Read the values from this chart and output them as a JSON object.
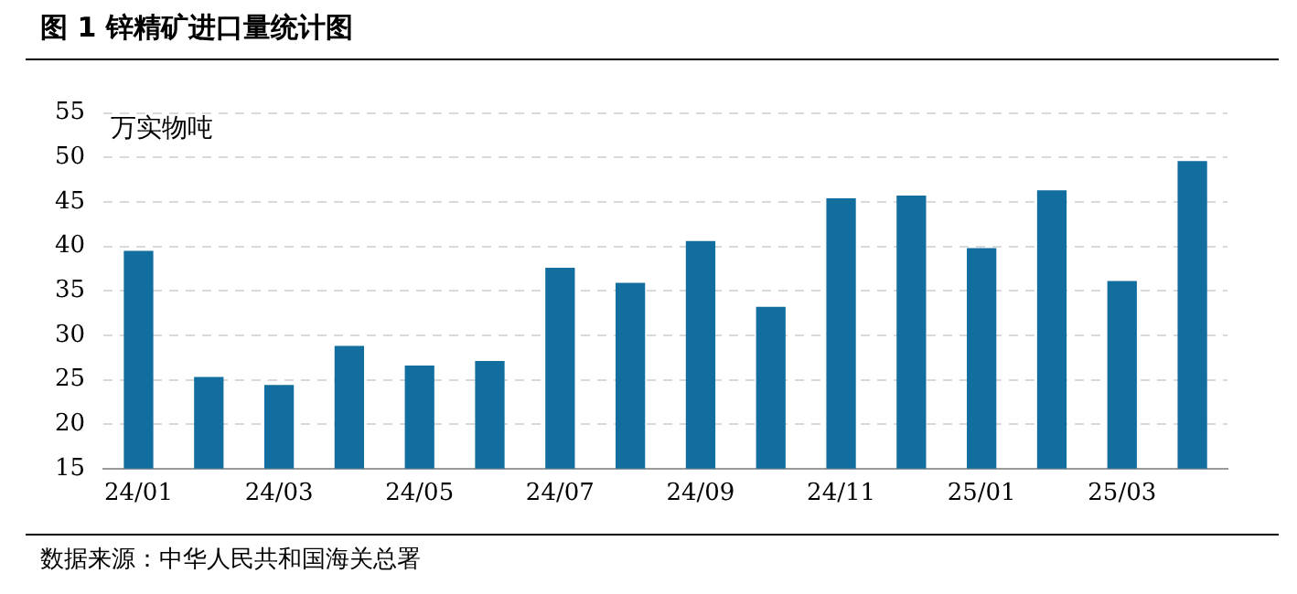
{
  "chart_data": {
    "type": "bar",
    "title": "图 1  锌精矿进口量统计图",
    "ylabel": "万实物吨",
    "annotations": [
      "数据来源：中华人民共和国海关总署"
    ],
    "categories": [
      "24/01",
      null,
      "24/03",
      null,
      "24/05",
      null,
      "24/07",
      null,
      "24/09",
      null,
      "24/11",
      null,
      "25/01",
      null,
      "25/03",
      null
    ],
    "values": [
      39.5,
      25.3,
      24.4,
      28.8,
      26.6,
      27.1,
      37.6,
      35.9,
      40.6,
      33.2,
      45.4,
      45.7,
      39.8,
      46.3,
      36.1,
      49.6
    ],
    "color": "#126e9e",
    "ylim": [
      15,
      55
    ],
    "yticks": [
      15,
      20,
      25,
      30,
      35,
      40,
      45,
      50,
      55
    ],
    "grid": "y",
    "legend": false
  }
}
